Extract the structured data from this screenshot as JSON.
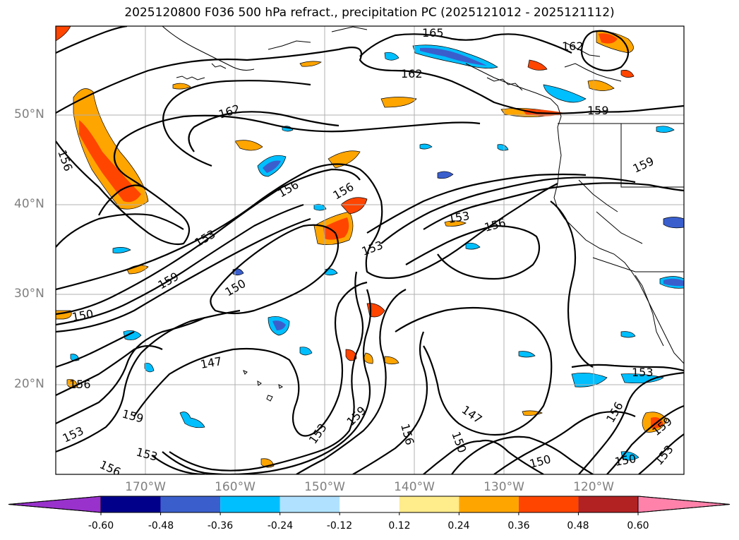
{
  "title": "2025120800 F036 500 hPa refract., precipitation PC (2025121012 - 2025121112)",
  "lat_labels": [
    {
      "text": "50°N",
      "lat": 50
    },
    {
      "text": "40°N",
      "lat": 40
    },
    {
      "text": "30°N",
      "lat": 30
    },
    {
      "text": "20°N",
      "lat": 20
    }
  ],
  "lon_labels": [
    {
      "text": "170°W",
      "lon": -170
    },
    {
      "text": "160°W",
      "lon": -160
    },
    {
      "text": "150°W",
      "lon": -150
    },
    {
      "text": "140°W",
      "lon": -140
    },
    {
      "text": "130°W",
      "lon": -130
    },
    {
      "text": "120°W",
      "lon": -120
    }
  ],
  "colorbar": {
    "colors": [
      "#9932cc",
      "#00008b",
      "#3a5fcd",
      "#00bfff",
      "#b0e2ff",
      "#ffffff",
      "#ffec8b",
      "#ffa500",
      "#ff4500",
      "#b22222",
      "#ff82ab"
    ],
    "ticks": [
      "-0.60",
      "-0.48",
      "-0.36",
      "-0.24",
      "-0.12",
      "0.12",
      "0.24",
      "0.36",
      "0.48",
      "0.60"
    ]
  },
  "contour_labels": [
    "165",
    "162",
    "162",
    "162",
    "159",
    "156",
    "159",
    "156",
    "156",
    "153",
    "156",
    "153",
    "153",
    "159",
    "150",
    "150",
    "156",
    "147",
    "159",
    "153",
    "153",
    "156",
    "159",
    "153",
    "156",
    "150",
    "147",
    "153",
    "156",
    "159",
    "150",
    "150",
    "153"
  ]
}
